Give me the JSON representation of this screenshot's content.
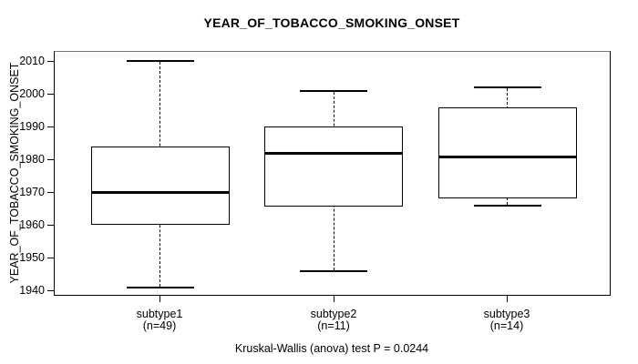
{
  "title": "YEAR_OF_TOBACCO_SMOKING_ONSET",
  "y_axis": {
    "label": "YEAR_OF_TOBACCO_SMOKING_ONSET",
    "ticks": [
      1940,
      1950,
      1960,
      1970,
      1980,
      1990,
      2000,
      2010
    ]
  },
  "footer": "Kruskal-Wallis (anova) test P = 0.0244",
  "chart_data": {
    "type": "boxplot",
    "title": "YEAR_OF_TOBACCO_SMOKING_ONSET",
    "xlabel": "",
    "ylabel": "YEAR_OF_TOBACCO_SMOKING_ONSET",
    "ylim": [
      1938.2,
      2012.8
    ],
    "yticks": [
      1940,
      1950,
      1960,
      1970,
      1980,
      1990,
      2000,
      2010
    ],
    "grid": false,
    "legend": null,
    "annotation": "Kruskal-Wallis (anova) test P = 0.0244",
    "groups": [
      {
        "label": "subtype1",
        "sublabel": "(n=49)",
        "n": 49,
        "whisker_low": 1941,
        "q1": 1960,
        "median": 1970,
        "q3": 1984,
        "whisker_high": 2010
      },
      {
        "label": "subtype2",
        "sublabel": "(n=11)",
        "n": 11,
        "whisker_low": 1946,
        "q1": 1965.5,
        "median": 1982,
        "q3": 1990,
        "whisker_high": 2001
      },
      {
        "label": "subtype3",
        "sublabel": "(n=14)",
        "n": 14,
        "whisker_low": 1966,
        "q1": 1968,
        "median": 1981,
        "q3": 1996,
        "whisker_high": 2002
      }
    ]
  }
}
